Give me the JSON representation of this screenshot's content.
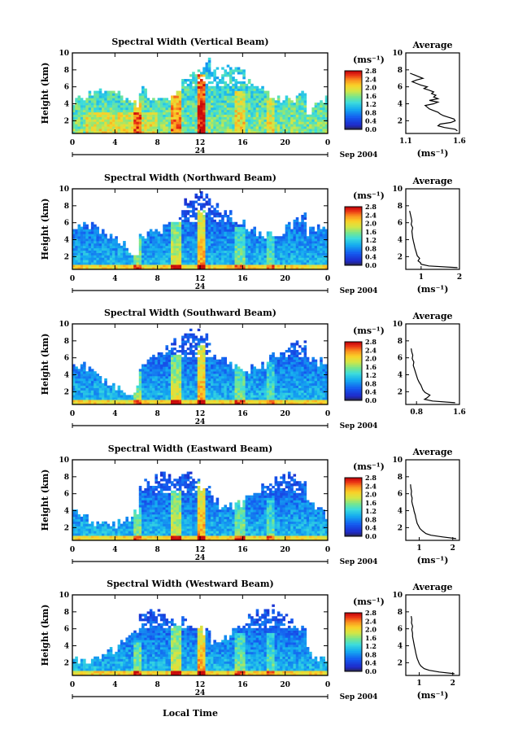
{
  "figure": {
    "xlabel_bottom": "Local Time",
    "date_label": "Sep 2004",
    "day_label": "24"
  },
  "chart_data": [
    {
      "type": "heatmap",
      "title": "Spectral Width (Vertical Beam)",
      "ylabel": "Height (km)",
      "x": [
        0,
        1,
        2,
        3,
        4,
        5,
        6,
        7,
        8,
        9,
        10,
        11,
        12,
        13,
        14,
        15,
        16,
        17,
        18,
        19,
        20,
        21,
        22,
        23,
        24
      ],
      "x_ticks": [
        "0",
        "4",
        "8",
        "12",
        "16",
        "20",
        "0"
      ],
      "xlim": [
        0,
        24
      ],
      "y_ticks": [
        "2",
        "4",
        "6",
        "8",
        "10"
      ],
      "ylim": [
        0.5,
        10
      ],
      "colorbar": {
        "unit_label": "(ms⁻¹)",
        "ticks": [
          "0.0",
          "0.4",
          "0.8",
          "1.2",
          "1.6",
          "2.0",
          "2.4",
          "2.8"
        ],
        "range": [
          0,
          2.8
        ]
      },
      "profile": {
        "title": "Average",
        "xlabel": "(ms⁻¹)",
        "x_ticks": [
          "1.1",
          "1.6"
        ],
        "xlim": [
          1.1,
          1.6
        ],
        "ylim": [
          0.5,
          10
        ],
        "y_ticks": [
          "2",
          "4",
          "6",
          "8",
          "10"
        ],
        "heights": [
          0.8,
          1.0,
          1.2,
          1.4,
          1.6,
          1.8,
          2.0,
          2.2,
          2.4,
          2.6,
          2.8,
          3.0,
          3.2,
          3.4,
          3.6,
          3.8,
          4.0,
          4.2,
          4.4,
          4.6,
          4.8,
          5.0,
          5.2,
          5.4,
          5.6,
          5.8,
          6.0,
          6.2,
          6.4,
          6.6,
          6.8,
          7.0,
          7.2,
          7.4,
          7.6
        ],
        "values": [
          1.58,
          1.56,
          1.46,
          1.4,
          1.42,
          1.52,
          1.56,
          1.55,
          1.5,
          1.45,
          1.42,
          1.4,
          1.36,
          1.32,
          1.3,
          1.28,
          1.36,
          1.4,
          1.32,
          1.4,
          1.36,
          1.38,
          1.34,
          1.36,
          1.32,
          1.27,
          1.3,
          1.24,
          1.2,
          1.16,
          1.2,
          1.26,
          1.22,
          1.18,
          1.14
        ]
      }
    },
    {
      "type": "heatmap",
      "title": "Spectral Width (Northward Beam)",
      "ylabel": "Height (km)",
      "x_ticks": [
        "0",
        "4",
        "8",
        "12",
        "16",
        "20",
        "0"
      ],
      "xlim": [
        0,
        24
      ],
      "y_ticks": [
        "2",
        "4",
        "6",
        "8",
        "10"
      ],
      "ylim": [
        0.5,
        10
      ],
      "colorbar": {
        "unit_label": "(ms⁻¹)",
        "ticks": [
          "0.0",
          "0.4",
          "0.8",
          "1.2",
          "1.6",
          "2.0",
          "2.4",
          "2.8"
        ],
        "range": [
          0,
          2.8
        ]
      },
      "profile": {
        "title": "Average",
        "xlabel": "(ms⁻¹)",
        "x_ticks": [
          "1",
          "2"
        ],
        "xlim": [
          0.6,
          2.0
        ],
        "ylim": [
          0.5,
          10
        ],
        "y_ticks": [
          "2",
          "4",
          "6",
          "8",
          "10"
        ],
        "heights": [
          0.7,
          0.9,
          1.1,
          1.3,
          1.5,
          1.8,
          2.1,
          2.4,
          2.7,
          3.0,
          3.4,
          3.8,
          4.2,
          4.6,
          5.0,
          5.4,
          5.8,
          6.2,
          6.6,
          7.0,
          7.4
        ],
        "values": [
          1.95,
          1.2,
          1.0,
          0.98,
          0.92,
          0.96,
          0.9,
          0.88,
          0.86,
          0.84,
          0.82,
          0.8,
          0.78,
          0.77,
          0.76,
          0.78,
          0.74,
          0.76,
          0.74,
          0.72,
          0.7
        ]
      }
    },
    {
      "type": "heatmap",
      "title": "Spectral Width (Southward Beam)",
      "ylabel": "Height (km)",
      "x_ticks": [
        "0",
        "4",
        "8",
        "12",
        "16",
        "20",
        "0"
      ],
      "xlim": [
        0,
        24
      ],
      "y_ticks": [
        "2",
        "4",
        "6",
        "8",
        "10"
      ],
      "ylim": [
        0.5,
        10
      ],
      "colorbar": {
        "unit_label": "(ms⁻¹)",
        "ticks": [
          "0.0",
          "0.4",
          "0.8",
          "1.2",
          "1.6",
          "2.0",
          "2.4",
          "2.8"
        ],
        "range": [
          0,
          2.8
        ]
      },
      "profile": {
        "title": "Average",
        "xlabel": "",
        "x_ticks": [
          "0.8",
          "1.6"
        ],
        "xlim": [
          0.6,
          1.6
        ],
        "ylim": [
          0.5,
          10
        ],
        "y_ticks": [
          "2",
          "4",
          "6",
          "8",
          "10"
        ],
        "heights": [
          0.7,
          0.9,
          1.1,
          1.3,
          1.6,
          1.9,
          2.2,
          2.5,
          2.8,
          3.1,
          3.5,
          3.9,
          4.3,
          4.7,
          5.1,
          5.5,
          5.9,
          6.3,
          6.7,
          7.1
        ],
        "values": [
          1.52,
          1.1,
          0.95,
          1.0,
          1.05,
          0.96,
          0.92,
          0.9,
          0.88,
          0.85,
          0.82,
          0.8,
          0.78,
          0.76,
          0.74,
          0.75,
          0.72,
          0.73,
          0.71,
          0.7
        ]
      }
    },
    {
      "type": "heatmap",
      "title": "Spectral Width (Eastward Beam)",
      "ylabel": "Height (km)",
      "x_ticks": [
        "0",
        "4",
        "8",
        "12",
        "16",
        "20",
        "0"
      ],
      "xlim": [
        0,
        24
      ],
      "y_ticks": [
        "2",
        "4",
        "6",
        "8",
        "10"
      ],
      "ylim": [
        0.5,
        10
      ],
      "colorbar": {
        "unit_label": "(ms⁻¹)",
        "ticks": [
          "0.0",
          "0.4",
          "0.8",
          "1.2",
          "1.6",
          "2.0",
          "2.4",
          "2.8"
        ],
        "range": [
          0,
          2.8
        ]
      },
      "profile": {
        "title": "Average",
        "xlabel": "(ms⁻¹)",
        "x_ticks": [
          "1",
          "2"
        ],
        "xlim": [
          0.6,
          2.2
        ],
        "ylim": [
          0.5,
          10
        ],
        "y_ticks": [
          "2",
          "4",
          "6",
          "8",
          "10"
        ],
        "heights": [
          0.7,
          0.9,
          1.1,
          1.3,
          1.6,
          1.9,
          2.2,
          2.5,
          2.8,
          3.1,
          3.5,
          3.9,
          4.3,
          4.7,
          5.1,
          5.5,
          5.9,
          6.3,
          6.7,
          7.1
        ],
        "values": [
          2.1,
          1.7,
          1.35,
          1.2,
          1.1,
          1.02,
          0.98,
          0.94,
          0.92,
          0.9,
          0.88,
          0.85,
          0.83,
          0.8,
          0.78,
          0.79,
          0.76,
          0.77,
          0.75,
          0.74
        ]
      }
    },
    {
      "type": "heatmap",
      "title": "Spectral Width (Westward Beam)",
      "ylabel": "Height (km)",
      "x_ticks": [
        "0",
        "4",
        "8",
        "12",
        "16",
        "20",
        "0"
      ],
      "xlim": [
        0,
        24
      ],
      "y_ticks": [
        "2",
        "4",
        "6",
        "8",
        "10"
      ],
      "ylim": [
        0.5,
        10
      ],
      "colorbar": {
        "unit_label": "(ms⁻¹)",
        "ticks": [
          "0.0",
          "0.4",
          "0.8",
          "1.2",
          "1.6",
          "2.0",
          "2.4",
          "2.8"
        ],
        "range": [
          0,
          2.8
        ]
      },
      "profile": {
        "title": "Average",
        "xlabel": "(ms⁻¹)",
        "x_ticks": [
          "1",
          "2"
        ],
        "xlim": [
          0.6,
          2.2
        ],
        "ylim": [
          0.5,
          10
        ],
        "y_ticks": [
          "2",
          "4",
          "6",
          "8",
          "10"
        ],
        "heights": [
          0.7,
          0.9,
          1.1,
          1.3,
          1.6,
          1.9,
          2.2,
          2.5,
          2.8,
          3.1,
          3.5,
          3.9,
          4.3,
          4.7,
          5.1,
          5.5,
          5.9,
          6.3,
          6.7,
          7.1,
          7.5
        ],
        "values": [
          2.05,
          1.6,
          1.3,
          1.15,
          1.05,
          1.0,
          0.97,
          0.94,
          0.92,
          0.9,
          0.88,
          0.86,
          0.84,
          0.82,
          0.8,
          0.8,
          0.78,
          0.8,
          0.77,
          0.78,
          0.76
        ]
      }
    }
  ]
}
